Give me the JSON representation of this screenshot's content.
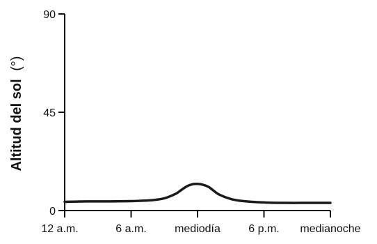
{
  "chart_data": {
    "type": "line",
    "title": "",
    "xlabel": "",
    "ylabel": "Altitud del sol",
    "ylabel_unit": "(°)",
    "ylim": [
      0,
      90
    ],
    "xlim": [
      0,
      24
    ],
    "y_ticks": [
      {
        "value": 0,
        "label": "0"
      },
      {
        "value": 45,
        "label": "45"
      },
      {
        "value": 90,
        "label": "90"
      }
    ],
    "x_ticks": [
      {
        "value": 0,
        "label": "12 a.m."
      },
      {
        "value": 6,
        "label": "6 a.m."
      },
      {
        "value": 12,
        "label": "mediodía"
      },
      {
        "value": 18,
        "label": "6 p.m."
      },
      {
        "value": 24,
        "label": "medianoche"
      }
    ],
    "grid": false,
    "legend": "none",
    "line_color": "#1a1a1a",
    "series": [
      {
        "x": [
          0,
          2,
          4,
          6,
          7,
          8,
          9,
          10,
          10.5,
          11,
          11.5,
          12,
          12.5,
          13,
          13.5,
          14,
          15,
          16,
          18,
          20,
          22,
          24
        ],
        "y": [
          4,
          4.2,
          4.2,
          4.3,
          4.5,
          4.8,
          5.6,
          7.6,
          9.3,
          11.0,
          12.0,
          12.2,
          11.8,
          10.8,
          8.9,
          7.2,
          5.3,
          4.4,
          3.7,
          3.5,
          3.5,
          3.5
        ]
      }
    ]
  }
}
